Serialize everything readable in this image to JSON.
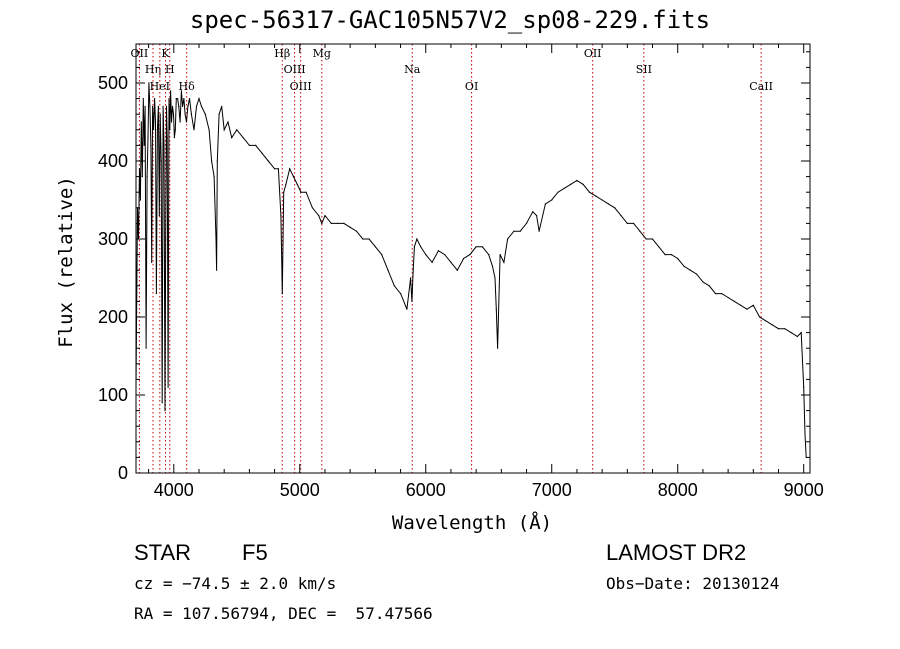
{
  "chart_data": {
    "type": "line",
    "title": "spec-56317-GAC105N57V2_sp08-229.fits",
    "xlabel": "Wavelength (Å)",
    "ylabel": "Flux (relative)",
    "xlim": [
      3700,
      9050
    ],
    "ylim": [
      0,
      550
    ],
    "xticks": [
      4000,
      5000,
      6000,
      7000,
      8000,
      9000
    ],
    "yticks": [
      0,
      100,
      200,
      300,
      400,
      500
    ],
    "grid": false,
    "series": [
      {
        "color": "#000000",
        "x": [
          3700,
          3705,
          3712,
          3720,
          3728,
          3735,
          3742,
          3750,
          3758,
          3765,
          3772,
          3780,
          3788,
          3795,
          3802,
          3810,
          3818,
          3825,
          3832,
          3840,
          3848,
          3855,
          3862,
          3870,
          3878,
          3885,
          3892,
          3900,
          3908,
          3915,
          3922,
          3930,
          3936,
          3942,
          3948,
          3955,
          3962,
          3968,
          3975,
          3982,
          3990,
          3998,
          4005,
          4012,
          4020,
          4030,
          4040,
          4050,
          4060,
          4070,
          4080,
          4090,
          4101,
          4112,
          4125,
          4140,
          4160,
          4180,
          4200,
          4220,
          4250,
          4280,
          4300,
          4320,
          4335,
          4340,
          4345,
          4360,
          4380,
          4400,
          4430,
          4460,
          4500,
          4550,
          4600,
          4650,
          4700,
          4750,
          4800,
          4830,
          4850,
          4861,
          4872,
          4890,
          4920,
          4950,
          4980,
          5010,
          5050,
          5100,
          5150,
          5175,
          5200,
          5250,
          5300,
          5350,
          5400,
          5450,
          5500,
          5550,
          5600,
          5650,
          5700,
          5750,
          5800,
          5850,
          5880,
          5890,
          5900,
          5910,
          5930,
          5960,
          6000,
          6050,
          6100,
          6150,
          6200,
          6250,
          6300,
          6350,
          6400,
          6450,
          6500,
          6530,
          6550,
          6560,
          6570,
          6590,
          6620,
          6650,
          6700,
          6750,
          6800,
          6850,
          6880,
          6900,
          6950,
          7000,
          7050,
          7100,
          7150,
          7200,
          7250,
          7300,
          7350,
          7400,
          7450,
          7500,
          7550,
          7600,
          7650,
          7700,
          7750,
          7800,
          7850,
          7900,
          7950,
          8000,
          8050,
          8100,
          8150,
          8200,
          8250,
          8300,
          8350,
          8400,
          8450,
          8500,
          8550,
          8600,
          8650,
          8700,
          8750,
          8800,
          8850,
          8900,
          8950,
          8980,
          9000,
          9010,
          9020
        ],
        "y": [
          110,
          200,
          340,
          300,
          390,
          350,
          450,
          380,
          480,
          420,
          470,
          160,
          380,
          430,
          500,
          470,
          420,
          270,
          470,
          440,
          480,
          450,
          230,
          440,
          470,
          330,
          460,
          400,
          90,
          470,
          420,
          80,
          300,
          470,
          430,
          110,
          480,
          440,
          490,
          450,
          470,
          460,
          430,
          440,
          480,
          480,
          470,
          450,
          490,
          470,
          480,
          460,
          450,
          470,
          480,
          460,
          440,
          470,
          480,
          470,
          460,
          440,
          400,
          380,
          300,
          260,
          400,
          460,
          470,
          440,
          450,
          430,
          440,
          430,
          420,
          420,
          410,
          400,
          390,
          390,
          330,
          230,
          360,
          370,
          390,
          380,
          370,
          360,
          360,
          340,
          330,
          320,
          330,
          320,
          320,
          320,
          315,
          310,
          300,
          300,
          290,
          280,
          260,
          240,
          230,
          210,
          250,
          220,
          260,
          290,
          300,
          290,
          280,
          270,
          285,
          280,
          270,
          260,
          275,
          280,
          290,
          290,
          280,
          265,
          250,
          210,
          160,
          280,
          270,
          300,
          310,
          310,
          320,
          335,
          330,
          310,
          345,
          350,
          360,
          365,
          370,
          375,
          370,
          360,
          355,
          350,
          345,
          340,
          330,
          320,
          320,
          310,
          300,
          300,
          290,
          280,
          280,
          275,
          265,
          260,
          255,
          245,
          240,
          230,
          230,
          225,
          220,
          215,
          210,
          215,
          200,
          195,
          190,
          185,
          185,
          180,
          175,
          180,
          110,
          50,
          20
        ]
      }
    ],
    "lines": [
      {
        "label": "OII",
        "x": 3727
      },
      {
        "label": "Hη",
        "x": 3835
      },
      {
        "label": "HeI",
        "x": 3889
      },
      {
        "label": "K",
        "x": 3934
      },
      {
        "label": "H",
        "x": 3968
      },
      {
        "label": "Hδ",
        "x": 4102
      },
      {
        "label": "Hβ",
        "x": 4861
      },
      {
        "label": "OIII",
        "x": 4959
      },
      {
        "label": "OIII",
        "x": 5007
      },
      {
        "label": "Mg",
        "x": 5175
      },
      {
        "label": "Na",
        "x": 5893
      },
      {
        "label": "OI",
        "x": 6364
      },
      {
        "label": "OII",
        "x": 7325
      },
      {
        "label": "SII",
        "x": 7731
      },
      {
        "label": "CaII",
        "x": 8662
      }
    ]
  },
  "footer": {
    "object_class": "STAR",
    "subclass": "F5",
    "survey": "LAMOST DR2",
    "cz": "cz = −74.5 ± 2.0 km/s",
    "obs_date": "Obs−Date: 20130124",
    "coords": "RA = 107.56794, DEC =  57.47566"
  }
}
